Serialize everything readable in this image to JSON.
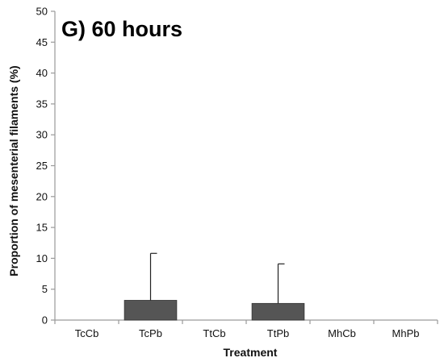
{
  "chart_data": {
    "type": "bar",
    "title": "G) 60 hours",
    "xlabel": "Treatment",
    "ylabel": "Proportion of mesenterial filaments (%)",
    "categories": [
      "TcCb",
      "TcPb",
      "TtCb",
      "TtPb",
      "MhCb",
      "MhPb"
    ],
    "values": [
      0,
      3.2,
      0,
      2.7,
      0,
      0
    ],
    "error_upper": [
      0,
      10.8,
      0,
      9.1,
      0,
      0
    ],
    "ylim": [
      0,
      50
    ],
    "yticks": [
      0,
      5,
      10,
      15,
      20,
      25,
      30,
      35,
      40,
      45,
      50
    ],
    "grid": false,
    "legend": "none",
    "bar_color": "#555555",
    "axis_color": "#9a9a9a"
  }
}
